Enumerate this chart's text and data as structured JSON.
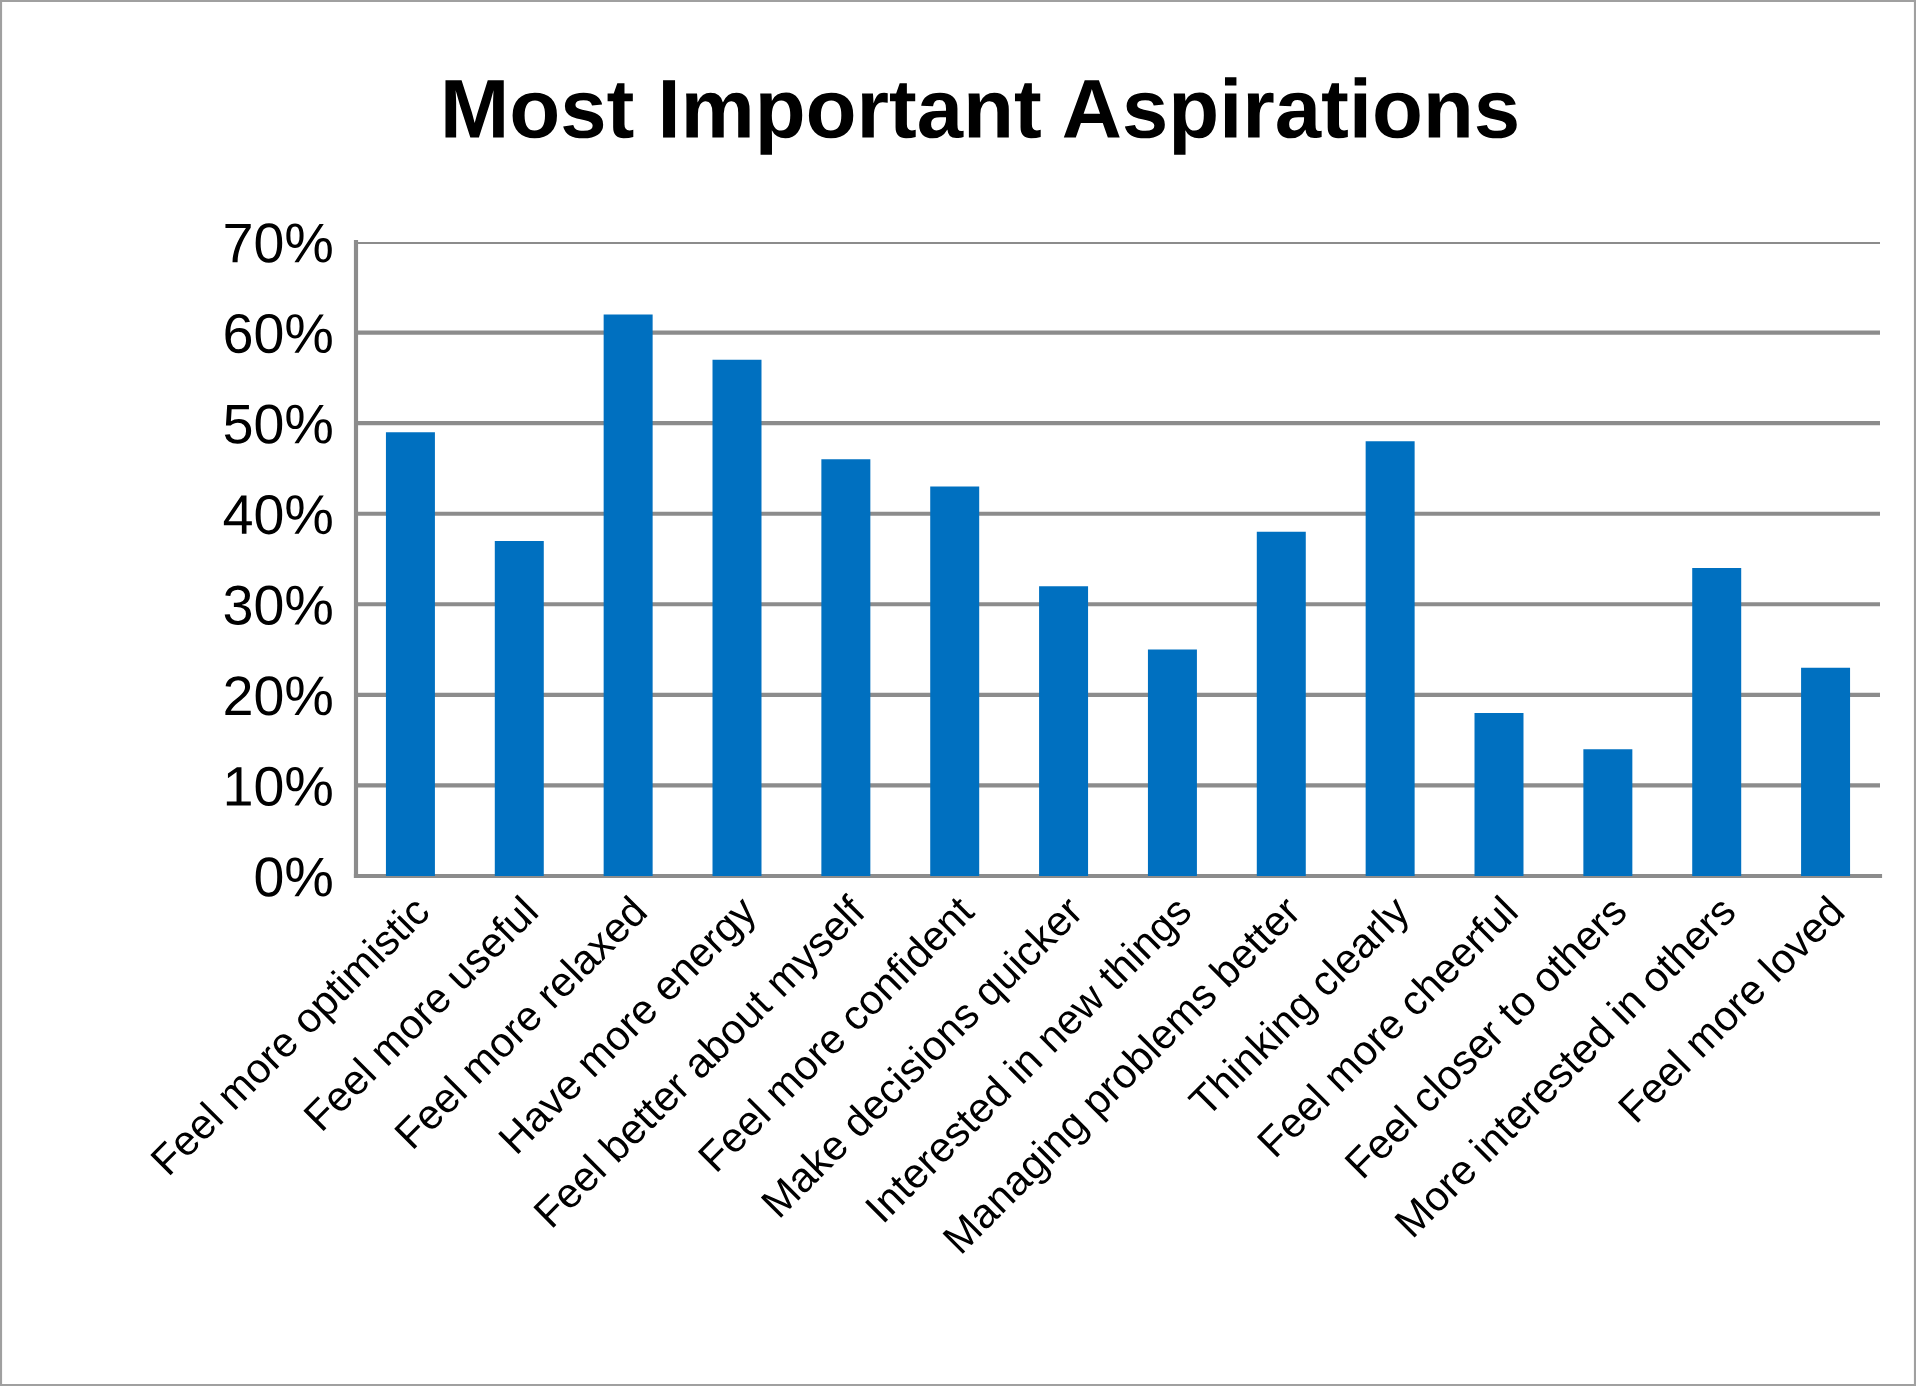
{
  "chart_data": {
    "type": "bar",
    "title": "Most Important Aspirations",
    "categories": [
      "Feel more optimistic",
      "Feel more useful",
      "Feel more relaxed",
      "Have more energy",
      "Feel better about myself",
      "Feel more confident",
      "Make decisions quicker",
      "Interested in new things",
      "Managing problems better",
      "Thinking clearly",
      "Feel more cheerful",
      "Feel closer to others",
      "More interested in others",
      "Feel more loved"
    ],
    "values": [
      49,
      37,
      62,
      57,
      46,
      43,
      32,
      25,
      38,
      48,
      18,
      14,
      34,
      23
    ],
    "color": "#0070c0",
    "ylim": [
      0,
      70
    ],
    "yticks": [
      {
        "value": 0,
        "label": "0%"
      },
      {
        "value": 10,
        "label": "10%"
      },
      {
        "value": 20,
        "label": "20%"
      },
      {
        "value": 30,
        "label": "30%"
      },
      {
        "value": 40,
        "label": "40%"
      },
      {
        "value": 50,
        "label": "50%"
      },
      {
        "value": 60,
        "label": "60%"
      },
      {
        "value": 70,
        "label": "70%"
      }
    ],
    "grid": "y",
    "legend": false
  }
}
